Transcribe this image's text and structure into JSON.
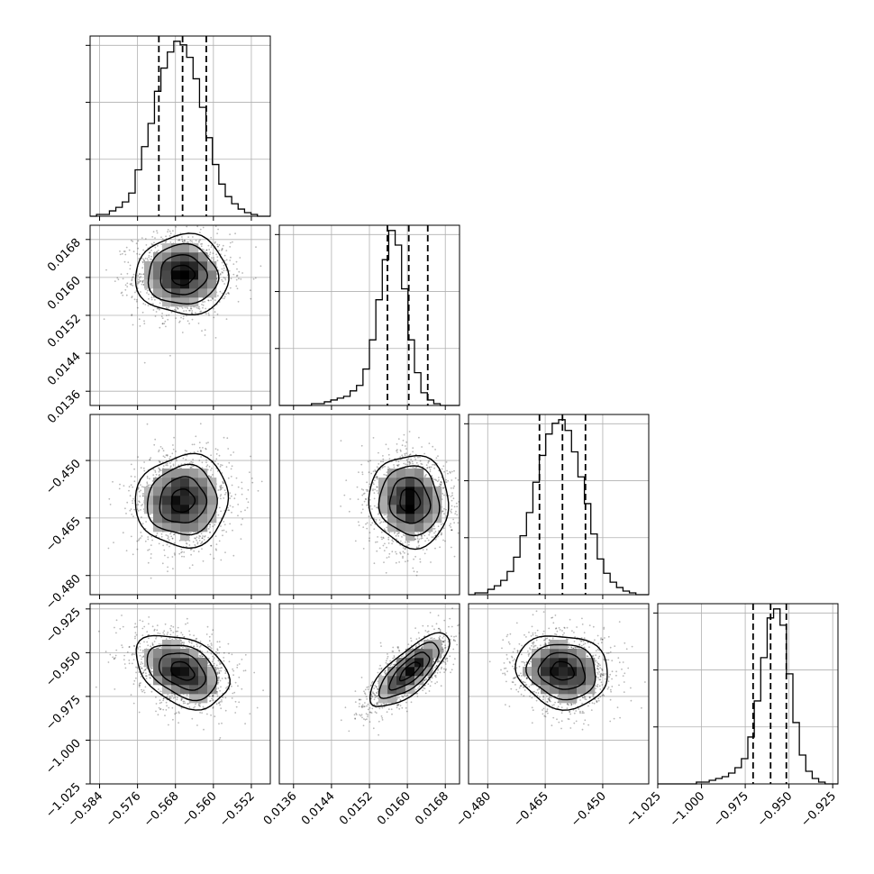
{
  "chart_data": {
    "type": "corner",
    "parameters": [
      {
        "range": [
          -0.586,
          -0.548
        ],
        "ticks": [
          -0.584,
          -0.576,
          -0.568,
          -0.56,
          -0.552
        ],
        "tick_labels": [
          "−0.584",
          "−0.576",
          "−0.568",
          "−0.560",
          "−0.552"
        ],
        "quantiles": [
          -0.5715,
          -0.5665,
          -0.5615
        ],
        "center": -0.5665,
        "sigma": 0.0049
      },
      {
        "range": [
          0.0133,
          0.0171
        ],
        "ticks": [
          0.0136,
          0.0144,
          0.0152,
          0.016,
          0.0168
        ],
        "tick_labels": [
          "0.0136",
          "0.0144",
          "0.0152",
          "0.0160",
          "0.0168"
        ],
        "quantiles": [
          0.01558,
          0.01603,
          0.01643
        ],
        "center": 0.01605,
        "sigma": 0.00042
      },
      {
        "range": [
          -0.485,
          -0.438
        ],
        "ticks": [
          -0.48,
          -0.465,
          -0.45
        ],
        "tick_labels": [
          "−0.480",
          "−0.465",
          "−0.450"
        ],
        "quantiles": [
          -0.4665,
          -0.4605,
          -0.4545
        ],
        "center": -0.4605,
        "sigma": 0.006
      },
      {
        "range": [
          -1.025,
          -0.922
        ],
        "ticks": [
          -1.025,
          -1.0,
          -0.975,
          -0.95,
          -0.925
        ],
        "tick_labels": [
          "−1.025",
          "−1.000",
          "−0.975",
          "−0.950",
          "−0.925"
        ],
        "quantiles": [
          -0.9705,
          -0.9605,
          -0.9515
        ],
        "center": -0.9605,
        "sigma": 0.0105
      }
    ],
    "histograms": [
      [
        0,
        1,
        1,
        3,
        5,
        8,
        13,
        26,
        39,
        52,
        70,
        83,
        92,
        98,
        96,
        89,
        77,
        61,
        44,
        29,
        18,
        11,
        7,
        4,
        2,
        1,
        0,
        0
      ],
      [
        0,
        0,
        0,
        0,
        0,
        1,
        1,
        2,
        3,
        4,
        5,
        8,
        11,
        20,
        36,
        58,
        80,
        96,
        88,
        64,
        36,
        18,
        7,
        3,
        1,
        0,
        0,
        0
      ],
      [
        0,
        1,
        1,
        3,
        5,
        8,
        13,
        21,
        33,
        46,
        63,
        78,
        90,
        96,
        98,
        92,
        80,
        66,
        51,
        34,
        20,
        12,
        7,
        4,
        2,
        1,
        0,
        0
      ],
      [
        0,
        0,
        0,
        0,
        0,
        0,
        1,
        1,
        2,
        3,
        4,
        6,
        9,
        14,
        26,
        46,
        70,
        92,
        97,
        88,
        61,
        34,
        16,
        7,
        3,
        1,
        0,
        0
      ]
    ],
    "correlations": {
      "1-0": 0.0,
      "2-0": 0.05,
      "2-1": -0.05,
      "3-0": -0.35,
      "3-1": 0.75,
      "3-2": -0.1
    },
    "contour_levels_sigma": [
      0.5,
      1.0,
      1.5,
      2.0
    ],
    "grid": true,
    "xlabel": "",
    "ylabel": "",
    "title": ""
  }
}
